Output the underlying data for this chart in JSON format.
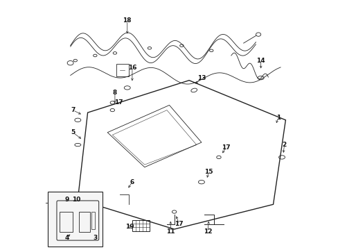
{
  "bg_color": "#ffffff",
  "line_color": "#222222",
  "label_color": "#111111"
}
